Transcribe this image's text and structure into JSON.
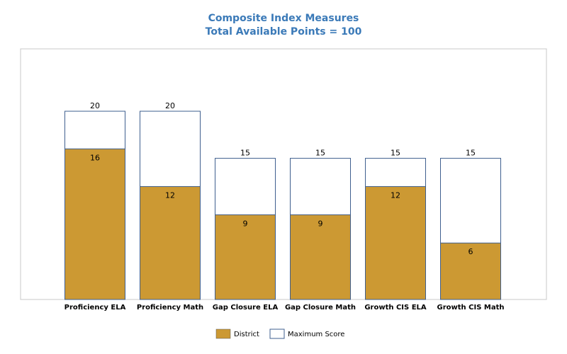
{
  "chart_data": {
    "type": "bar",
    "title": "Composite Index Measures",
    "subtitle": "Total Available Points = 100",
    "categories": [
      "Proficiency ELA",
      "Proficiency Math",
      "Gap Closure ELA",
      "Gap Closure Math",
      "Growth CIS ELA",
      "Growth CIS Math"
    ],
    "series": [
      {
        "name": "District",
        "values": [
          16,
          12,
          9,
          9,
          12,
          6
        ],
        "color": "#cc9933"
      },
      {
        "name": "Maximum Score",
        "values": [
          20,
          20,
          15,
          15,
          15,
          15
        ],
        "color": "#ffffff",
        "stroke": "#3f5f8f"
      }
    ],
    "ylim": [
      0,
      27
    ],
    "grid": false,
    "legend_position": "bottom-center",
    "overlapping": true
  }
}
